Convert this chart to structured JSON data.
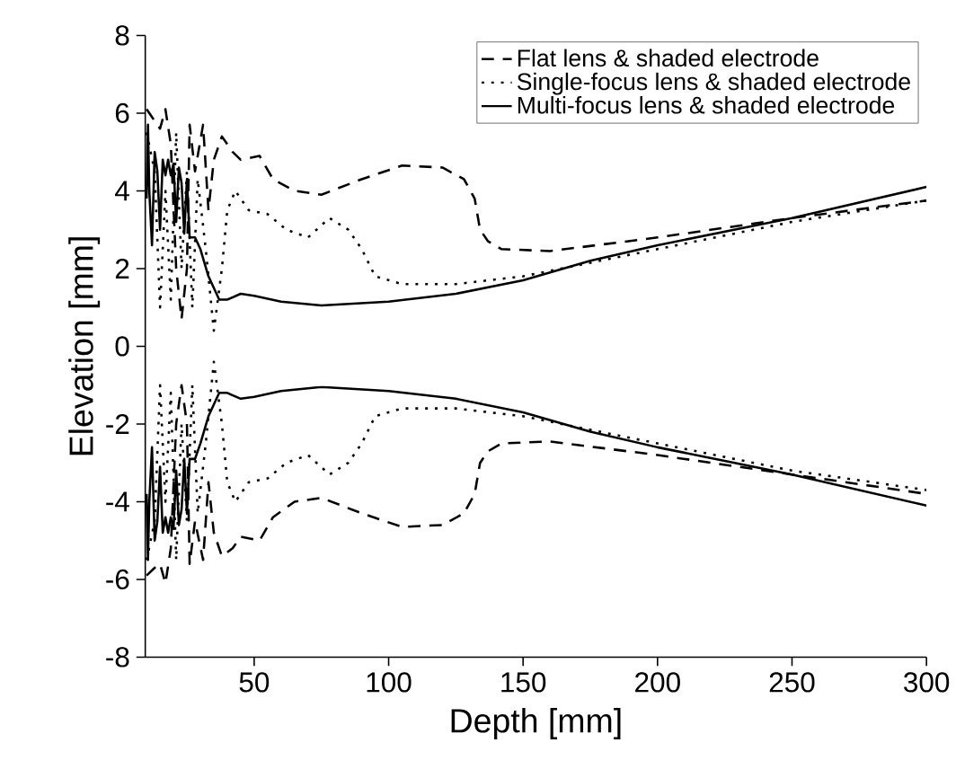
{
  "chart_data": {
    "type": "line",
    "xlabel": "Depth [mm]",
    "ylabel": "Elevation [mm]",
    "xlim": [
      9.5,
      300
    ],
    "ylim": [
      -8,
      8
    ],
    "xticks": [
      50,
      100,
      150,
      200,
      250,
      300
    ],
    "yticks": [
      -8,
      -6,
      -4,
      -2,
      0,
      2,
      4,
      6,
      8
    ],
    "legend": "top right",
    "grid": false,
    "series": [
      {
        "name": "Flat lens & shaded electrode",
        "color": "#000000",
        "line_style": "dashed",
        "x": [
          10,
          13,
          15,
          17,
          19,
          21,
          23,
          25,
          26,
          28,
          31,
          33,
          35,
          38,
          42,
          45,
          52,
          57,
          65,
          75,
          90,
          105,
          120,
          128,
          132,
          134,
          137,
          142,
          160,
          200,
          250,
          300
        ],
        "values": [
          6.1,
          5.8,
          5.6,
          6.1,
          5.2,
          2.0,
          0.7,
          2.0,
          5.7,
          4.5,
          5.7,
          3.5,
          4.8,
          5.4,
          5.0,
          4.8,
          4.9,
          4.3,
          4.0,
          3.9,
          4.3,
          4.65,
          4.6,
          4.3,
          3.8,
          3.0,
          2.7,
          2.5,
          2.45,
          2.8,
          3.3,
          3.75
        ]
      },
      {
        "color": "#000000",
        "line_style": "dashed",
        "x": [
          10,
          13,
          15,
          17,
          19,
          21,
          23,
          25,
          26,
          28,
          31,
          33,
          35,
          38,
          42,
          45,
          52,
          57,
          65,
          75,
          90,
          105,
          120,
          128,
          132,
          134,
          137,
          142,
          160,
          200,
          250,
          300
        ],
        "values": [
          -5.9,
          -5.7,
          -5.6,
          -6.1,
          -5.2,
          -2.0,
          -1.0,
          -2.0,
          -5.6,
          -4.5,
          -5.5,
          -3.5,
          -4.8,
          -5.4,
          -5.2,
          -4.9,
          -5.0,
          -4.4,
          -4.0,
          -3.9,
          -4.3,
          -4.65,
          -4.6,
          -4.3,
          -3.8,
          -3.0,
          -2.7,
          -2.5,
          -2.45,
          -2.8,
          -3.3,
          -3.8
        ]
      },
      {
        "name": "Single-focus lens & shaded electrode",
        "color": "#000000",
        "line_style": "dotted",
        "x": [
          10,
          13,
          15,
          17,
          19,
          21,
          23,
          25,
          27,
          29,
          32,
          35,
          38,
          40,
          43,
          48,
          55,
          62,
          70,
          78,
          85,
          90,
          95,
          105,
          125,
          150,
          200,
          250,
          300
        ],
        "values": [
          5.5,
          4.5,
          1.0,
          4.0,
          1.2,
          5.5,
          2.0,
          4.5,
          1.0,
          4.3,
          2.5,
          0.4,
          2.0,
          3.5,
          4.0,
          3.5,
          3.4,
          3.0,
          2.8,
          3.3,
          3.0,
          2.5,
          1.8,
          1.6,
          1.6,
          1.8,
          2.5,
          3.2,
          3.75
        ]
      },
      {
        "color": "#000000",
        "line_style": "dotted",
        "x": [
          10,
          13,
          15,
          17,
          19,
          21,
          23,
          25,
          27,
          29,
          32,
          35,
          38,
          40,
          43,
          48,
          55,
          62,
          70,
          78,
          85,
          90,
          95,
          105,
          125,
          150,
          200,
          250,
          300
        ],
        "values": [
          -5.5,
          -4.5,
          -1.0,
          -4.0,
          -1.2,
          -5.5,
          -2.0,
          -4.5,
          -1.0,
          -4.3,
          -2.5,
          -0.4,
          -2.0,
          -3.5,
          -4.0,
          -3.5,
          -3.4,
          -3.0,
          -2.8,
          -3.3,
          -3.0,
          -2.5,
          -1.8,
          -1.6,
          -1.6,
          -1.8,
          -2.5,
          -3.2,
          -3.7
        ]
      },
      {
        "name": "Multi-focus lens & shaded electrode",
        "color": "#000000",
        "line_style": "solid",
        "x": [
          10,
          10.5,
          11,
          12,
          13,
          14,
          15,
          16,
          17,
          18,
          19,
          20,
          21,
          22,
          23,
          24,
          25,
          26,
          28,
          30,
          33,
          37,
          40,
          45,
          50,
          60,
          75,
          100,
          125,
          150,
          175,
          200,
          250,
          300
        ],
        "values": [
          3.8,
          5.7,
          4.0,
          2.6,
          5.0,
          4.5,
          3.0,
          4.8,
          4.4,
          4.8,
          4.4,
          4.7,
          3.2,
          4.6,
          4.2,
          2.9,
          4.3,
          2.8,
          2.8,
          2.5,
          1.8,
          1.2,
          1.2,
          1.35,
          1.3,
          1.15,
          1.05,
          1.15,
          1.35,
          1.7,
          2.2,
          2.6,
          3.3,
          4.1
        ]
      },
      {
        "color": "#000000",
        "line_style": "solid",
        "x": [
          10,
          10.5,
          11,
          12,
          13,
          14,
          15,
          16,
          17,
          18,
          19,
          20,
          21,
          22,
          23,
          24,
          25,
          26,
          28,
          30,
          33,
          37,
          40,
          45,
          50,
          60,
          75,
          100,
          125,
          150,
          175,
          200,
          250,
          300
        ],
        "values": [
          -3.8,
          -5.5,
          -4.0,
          -2.6,
          -5.0,
          -4.5,
          -3.1,
          -4.8,
          -4.4,
          -4.8,
          -4.4,
          -4.7,
          -3.2,
          -4.6,
          -4.2,
          -2.9,
          -4.3,
          -2.9,
          -2.9,
          -2.5,
          -1.8,
          -1.2,
          -1.2,
          -1.35,
          -1.3,
          -1.15,
          -1.05,
          -1.15,
          -1.35,
          -1.7,
          -2.2,
          -2.6,
          -3.3,
          -4.1
        ]
      }
    ]
  }
}
